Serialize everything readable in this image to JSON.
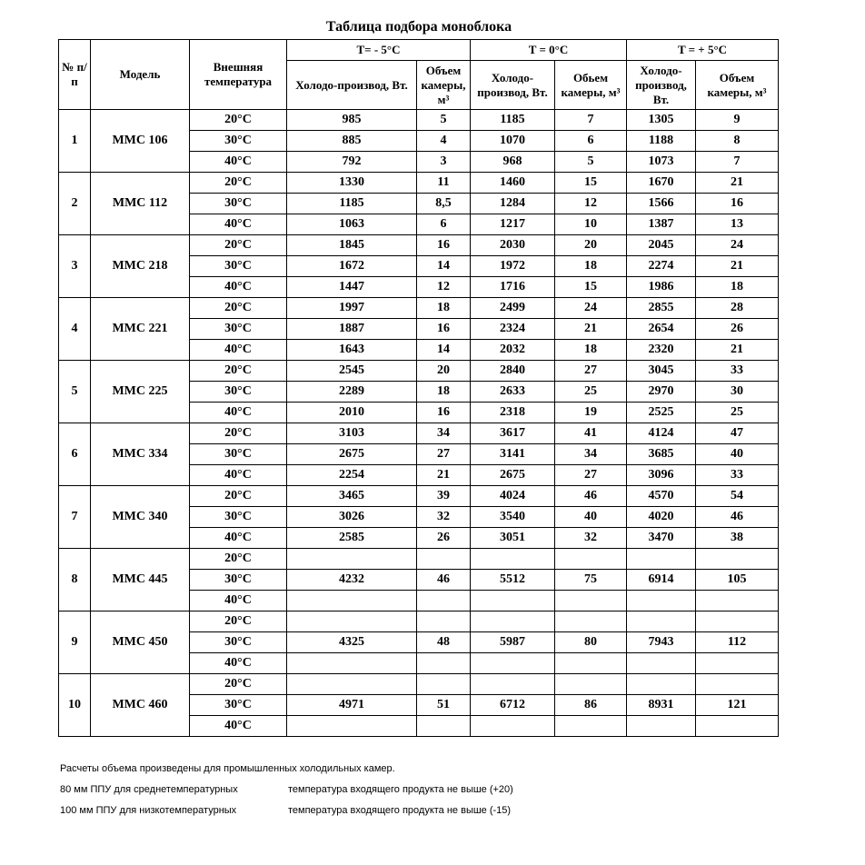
{
  "title": "Таблица подбора моноблока",
  "headers": {
    "no": "№ п/п",
    "model": "Модель",
    "outside_temp": "Внешняя температура",
    "groups": [
      "T= - 5°C",
      "T = 0°C",
      "T = + 5°C"
    ],
    "sub": [
      "Холодо-производ, Вт.",
      "Объем камеры, м³",
      "Холодо-производ, Вт.",
      "Обьем камеры, м³",
      "Холодо-производ, Вт.",
      "Объем камеры, м³"
    ]
  },
  "rows": [
    {
      "no": "1",
      "model": "ММС 106",
      "rows": [
        {
          "temp": "20°C",
          "values": [
            "985",
            "5",
            "1185",
            "7",
            "1305",
            "9"
          ]
        },
        {
          "temp": "30°C",
          "values": [
            "885",
            "4",
            "1070",
            "6",
            "1188",
            "8"
          ]
        },
        {
          "temp": "40°C",
          "values": [
            "792",
            "3",
            "968",
            "5",
            "1073",
            "7"
          ]
        }
      ]
    },
    {
      "no": "2",
      "model": "ММС 112",
      "rows": [
        {
          "temp": "20°C",
          "values": [
            "1330",
            "11",
            "1460",
            "15",
            "1670",
            "21"
          ]
        },
        {
          "temp": "30°C",
          "values": [
            "1185",
            "8,5",
            "1284",
            "12",
            "1566",
            "16"
          ]
        },
        {
          "temp": "40°C",
          "values": [
            "1063",
            "6",
            "1217",
            "10",
            "1387",
            "13"
          ]
        }
      ]
    },
    {
      "no": "3",
      "model": "ММС 218",
      "rows": [
        {
          "temp": "20°C",
          "values": [
            "1845",
            "16",
            "2030",
            "20",
            "2045",
            "24"
          ]
        },
        {
          "temp": "30°C",
          "values": [
            "1672",
            "14",
            "1972",
            "18",
            "2274",
            "21"
          ]
        },
        {
          "temp": "40°C",
          "values": [
            "1447",
            "12",
            "1716",
            "15",
            "1986",
            "18"
          ]
        }
      ]
    },
    {
      "no": "4",
      "model": "ММС 221",
      "rows": [
        {
          "temp": "20°C",
          "values": [
            "1997",
            "18",
            "2499",
            "24",
            "2855",
            "28"
          ]
        },
        {
          "temp": "30°C",
          "values": [
            "1887",
            "16",
            "2324",
            "21",
            "2654",
            "26"
          ]
        },
        {
          "temp": "40°C",
          "values": [
            "1643",
            "14",
            "2032",
            "18",
            "2320",
            "21"
          ]
        }
      ]
    },
    {
      "no": "5",
      "model": "ММС 225",
      "rows": [
        {
          "temp": "20°C",
          "values": [
            "2545",
            "20",
            "2840",
            "27",
            "3045",
            "33"
          ]
        },
        {
          "temp": "30°C",
          "values": [
            "2289",
            "18",
            "2633",
            "25",
            "2970",
            "30"
          ]
        },
        {
          "temp": "40°C",
          "values": [
            "2010",
            "16",
            "2318",
            "19",
            "2525",
            "25"
          ]
        }
      ]
    },
    {
      "no": "6",
      "model": "ММС 334",
      "rows": [
        {
          "temp": "20°C",
          "values": [
            "3103",
            "34",
            "3617",
            "41",
            "4124",
            "47"
          ]
        },
        {
          "temp": "30°C",
          "values": [
            "2675",
            "27",
            "3141",
            "34",
            "3685",
            "40"
          ]
        },
        {
          "temp": "40°C",
          "values": [
            "2254",
            "21",
            "2675",
            "27",
            "3096",
            "33"
          ]
        }
      ]
    },
    {
      "no": "7",
      "model": "ММС 340",
      "rows": [
        {
          "temp": "20°C",
          "values": [
            "3465",
            "39",
            "4024",
            "46",
            "4570",
            "54"
          ]
        },
        {
          "temp": "30°C",
          "values": [
            "3026",
            "32",
            "3540",
            "40",
            "4020",
            "46"
          ]
        },
        {
          "temp": "40°C",
          "values": [
            "2585",
            "26",
            "3051",
            "32",
            "3470",
            "38"
          ]
        }
      ]
    },
    {
      "no": "8",
      "model": "ММС 445",
      "rows": [
        {
          "temp": "20°C",
          "values": [
            "",
            "",
            "",
            "",
            "",
            ""
          ]
        },
        {
          "temp": "30°C",
          "values": [
            "4232",
            "46",
            "5512",
            "75",
            "6914",
            "105"
          ]
        },
        {
          "temp": "40°C",
          "values": [
            "",
            "",
            "",
            "",
            "",
            ""
          ]
        }
      ]
    },
    {
      "no": "9",
      "model": "ММС 450",
      "rows": [
        {
          "temp": "20°C",
          "values": [
            "",
            "",
            "",
            "",
            "",
            ""
          ]
        },
        {
          "temp": "30°C",
          "values": [
            "4325",
            "48",
            "5987",
            "80",
            "7943",
            "112"
          ]
        },
        {
          "temp": "40°C",
          "values": [
            "",
            "",
            "",
            "",
            "",
            ""
          ]
        }
      ]
    },
    {
      "no": "10",
      "model": "ММС 460",
      "rows": [
        {
          "temp": "20°C",
          "values": [
            "",
            "",
            "",
            "",
            "",
            ""
          ]
        },
        {
          "temp": "30°C",
          "values": [
            "4971",
            "51",
            "6712",
            "86",
            "8931",
            "121"
          ]
        },
        {
          "temp": "40°C",
          "values": [
            "",
            "",
            "",
            "",
            "",
            ""
          ]
        }
      ]
    }
  ],
  "notes": {
    "line1": "Расчеты объема произведены  для промышленных холодильных камер.",
    "line2a": "80 мм ППУ для среднетемпературных",
    "line2b": "температура входящего продукта не выше  (+20)",
    "line3a": "100 мм ППУ для низкотемпературных",
    "line3b": "температура входящего продукта не выше (-15)"
  }
}
